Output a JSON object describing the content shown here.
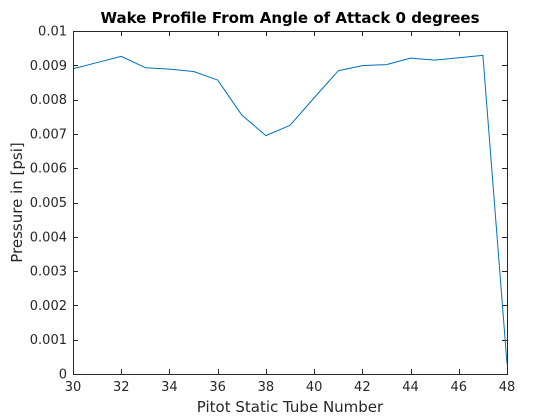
{
  "chart_data": {
    "type": "line",
    "title": "Wake Profile From Angle of Attack 0 degrees",
    "xlabel": "Pitot Static Tube Number",
    "ylabel": "Pressure in [psi]",
    "xlim": [
      30,
      48
    ],
    "ylim": [
      0,
      0.01
    ],
    "xticks": [
      30,
      32,
      34,
      36,
      38,
      40,
      42,
      44,
      46,
      48
    ],
    "xtick_labels": [
      "30",
      "32",
      "34",
      "36",
      "38",
      "40",
      "42",
      "44",
      "46",
      "48"
    ],
    "yticks": [
      0,
      0.001,
      0.002,
      0.003,
      0.004,
      0.005,
      0.006,
      0.007,
      0.008,
      0.009,
      0.01
    ],
    "ytick_labels": [
      "0",
      "0.001",
      "0.002",
      "0.003",
      "0.004",
      "0.005",
      "0.006",
      "0.007",
      "0.008",
      "0.009",
      "0.01"
    ],
    "grid": false,
    "box": true,
    "series": [
      {
        "color": "#0072BD",
        "x": [
          30,
          31,
          32,
          33,
          34,
          35,
          36,
          37,
          38,
          39,
          40,
          41,
          42,
          43,
          44,
          45,
          46,
          47,
          48
        ],
        "y": [
          0.0089,
          0.00908,
          0.00926,
          0.00893,
          0.00889,
          0.00882,
          0.00857,
          0.00755,
          0.00695,
          0.00725,
          0.00805,
          0.00884,
          0.00899,
          0.00902,
          0.00921,
          0.00915,
          0.00922,
          0.00929,
          0.0003
        ]
      }
    ]
  }
}
